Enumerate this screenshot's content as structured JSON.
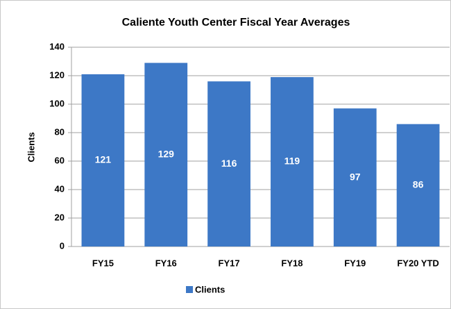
{
  "chart_data": {
    "type": "bar",
    "title": "Caliente Youth Center Fiscal Year Averages",
    "y_label": "Clients",
    "categories": [
      "FY15",
      "FY16",
      "FY17",
      "FY18",
      "FY19",
      "FY20 YTD"
    ],
    "series": [
      {
        "name": "Clients",
        "color": "#3d78c6",
        "values": [
          121,
          129,
          116,
          119,
          97,
          86
        ]
      }
    ],
    "ylim": [
      0,
      140
    ],
    "yticks": [
      0,
      20,
      40,
      60,
      80,
      100,
      120,
      140
    ],
    "grid": true,
    "legend": "bottom"
  }
}
